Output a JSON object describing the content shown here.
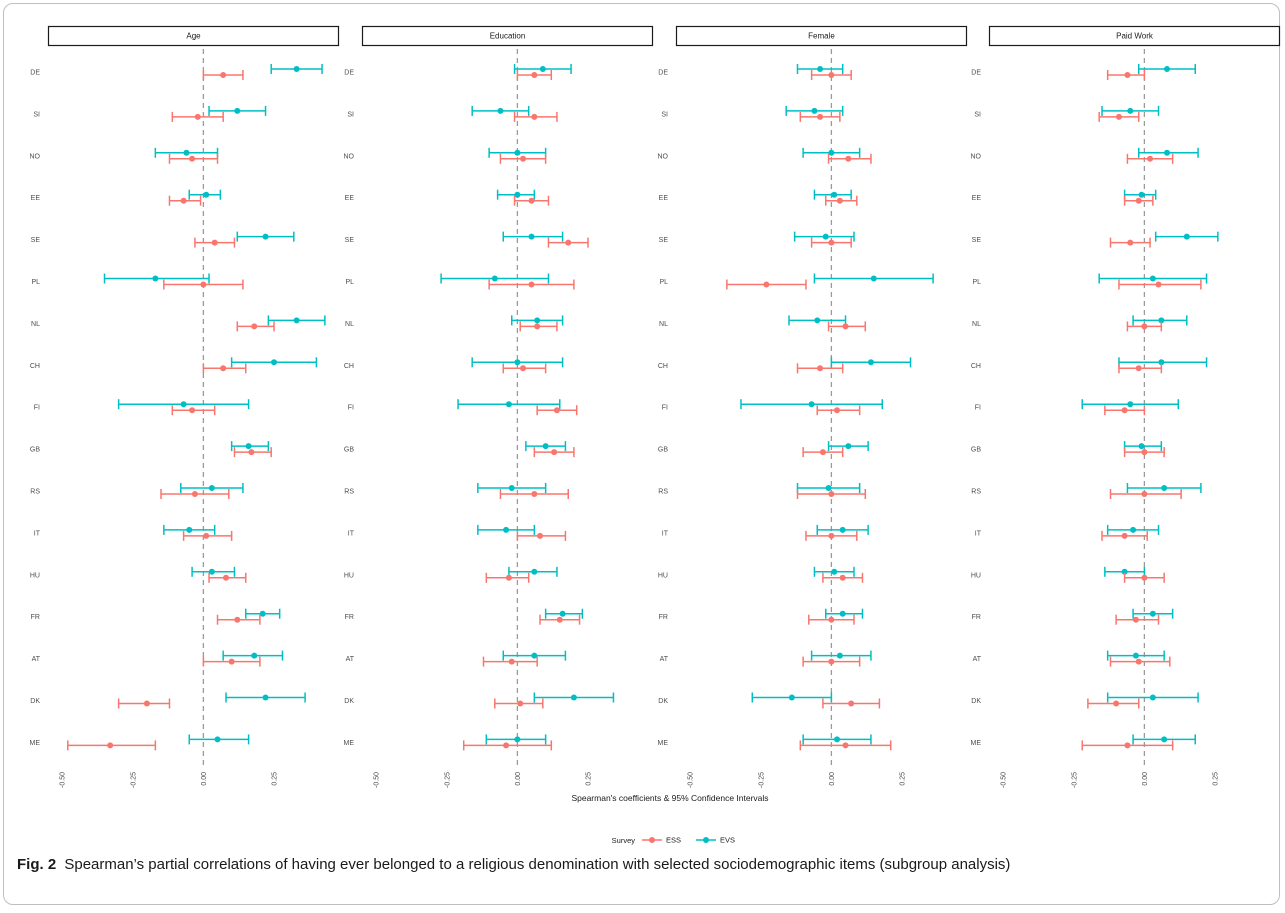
{
  "caption": {
    "label": "Fig. 2",
    "text": "Spearman’s partial correlations of having ever belonged to a religious denomination with selected sociodemographic items (subgroup analysis)"
  },
  "legend": {
    "title": "Survey",
    "entries": [
      {
        "label": "ESS",
        "color": "#F8766D"
      },
      {
        "label": "EVS",
        "color": "#00BFC4"
      }
    ]
  },
  "chart_data": {
    "type": "scatter",
    "subtype": "forest-plot-with-error-bars",
    "facet_layout": "1 row x 4 columns",
    "x_axis_title": "Spearman's coefficients & 95% Confidence Intervals",
    "xlim": [
      -0.55,
      0.48
    ],
    "x_ticks": [
      -0.5,
      -0.25,
      0.0,
      0.25
    ],
    "x_tick_labels": [
      "-0.50",
      "-0.25",
      "0.00",
      "0.25"
    ],
    "reference_line": 0,
    "grid": false,
    "legend_position": "bottom",
    "countries": [
      "DE",
      "SI",
      "NO",
      "EE",
      "SE",
      "PL",
      "NL",
      "CH",
      "FI",
      "GB",
      "RS",
      "IT",
      "HU",
      "FR",
      "AT",
      "DK",
      "ME"
    ],
    "series_colors": {
      "ESS": "#F8766D",
      "EVS": "#00BFC4"
    },
    "panels": [
      {
        "title": "Age",
        "ESS": [
          [
            0.07,
            0.0,
            0.14
          ],
          [
            -0.02,
            -0.11,
            0.07
          ],
          [
            -0.04,
            -0.12,
            0.05
          ],
          [
            -0.07,
            -0.12,
            -0.01
          ],
          [
            0.04,
            -0.03,
            0.11
          ],
          [
            0.0,
            -0.14,
            0.14
          ],
          [
            0.18,
            0.12,
            0.25
          ],
          [
            0.07,
            0.0,
            0.15
          ],
          [
            -0.04,
            -0.11,
            0.04
          ],
          [
            0.17,
            0.11,
            0.24
          ],
          [
            -0.03,
            -0.15,
            0.09
          ],
          [
            0.01,
            -0.07,
            0.1
          ],
          [
            0.08,
            0.02,
            0.15
          ],
          [
            0.12,
            0.05,
            0.2
          ],
          [
            0.1,
            0.0,
            0.2
          ],
          [
            -0.2,
            -0.3,
            -0.12
          ],
          [
            -0.33,
            -0.48,
            -0.17
          ]
        ],
        "EVS": [
          [
            0.33,
            0.24,
            0.42
          ],
          [
            0.12,
            0.02,
            0.22
          ],
          [
            -0.06,
            -0.17,
            0.05
          ],
          [
            0.01,
            -0.05,
            0.06
          ],
          [
            0.22,
            0.12,
            0.32
          ],
          [
            -0.17,
            -0.35,
            0.02
          ],
          [
            0.33,
            0.23,
            0.43
          ],
          [
            0.25,
            0.1,
            0.4
          ],
          [
            -0.07,
            -0.3,
            0.16
          ],
          [
            0.16,
            0.1,
            0.23
          ],
          [
            0.03,
            -0.08,
            0.14
          ],
          [
            -0.05,
            -0.14,
            0.04
          ],
          [
            0.03,
            -0.04,
            0.11
          ],
          [
            0.21,
            0.15,
            0.27
          ],
          [
            0.18,
            0.07,
            0.28
          ],
          [
            0.22,
            0.08,
            0.36
          ],
          [
            0.05,
            -0.05,
            0.16
          ]
        ]
      },
      {
        "title": "Education",
        "ESS": [
          [
            0.06,
            0.0,
            0.12
          ],
          [
            0.06,
            -0.01,
            0.14
          ],
          [
            0.02,
            -0.06,
            0.1
          ],
          [
            0.05,
            -0.01,
            0.11
          ],
          [
            0.18,
            0.11,
            0.25
          ],
          [
            0.05,
            -0.1,
            0.2
          ],
          [
            0.07,
            0.01,
            0.14
          ],
          [
            0.02,
            -0.05,
            0.1
          ],
          [
            0.14,
            0.07,
            0.21
          ],
          [
            0.13,
            0.06,
            0.2
          ],
          [
            0.06,
            -0.06,
            0.18
          ],
          [
            0.08,
            0.0,
            0.17
          ],
          [
            -0.03,
            -0.11,
            0.04
          ],
          [
            0.15,
            0.08,
            0.22
          ],
          [
            -0.02,
            -0.12,
            0.07
          ],
          [
            0.01,
            -0.08,
            0.09
          ],
          [
            -0.04,
            -0.19,
            0.12
          ]
        ],
        "EVS": [
          [
            0.09,
            -0.01,
            0.19
          ],
          [
            -0.06,
            -0.16,
            0.04
          ],
          [
            0.0,
            -0.1,
            0.1
          ],
          [
            0.0,
            -0.07,
            0.06
          ],
          [
            0.05,
            -0.05,
            0.16
          ],
          [
            -0.08,
            -0.27,
            0.11
          ],
          [
            0.07,
            -0.02,
            0.16
          ],
          [
            0.0,
            -0.16,
            0.16
          ],
          [
            -0.03,
            -0.21,
            0.15
          ],
          [
            0.1,
            0.03,
            0.17
          ],
          [
            -0.02,
            -0.14,
            0.1
          ],
          [
            -0.04,
            -0.14,
            0.06
          ],
          [
            0.06,
            -0.03,
            0.14
          ],
          [
            0.16,
            0.1,
            0.23
          ],
          [
            0.06,
            -0.05,
            0.17
          ],
          [
            0.2,
            0.06,
            0.34
          ],
          [
            0.0,
            -0.11,
            0.1
          ]
        ]
      },
      {
        "title": "Female",
        "ESS": [
          [
            0.0,
            -0.07,
            0.07
          ],
          [
            -0.04,
            -0.11,
            0.03
          ],
          [
            0.06,
            -0.01,
            0.14
          ],
          [
            0.03,
            -0.02,
            0.09
          ],
          [
            0.0,
            -0.07,
            0.07
          ],
          [
            -0.23,
            -0.37,
            -0.09
          ],
          [
            0.05,
            -0.01,
            0.12
          ],
          [
            -0.04,
            -0.12,
            0.04
          ],
          [
            0.02,
            -0.05,
            0.1
          ],
          [
            -0.03,
            -0.1,
            0.04
          ],
          [
            0.0,
            -0.12,
            0.12
          ],
          [
            0.0,
            -0.09,
            0.09
          ],
          [
            0.04,
            -0.03,
            0.11
          ],
          [
            0.0,
            -0.08,
            0.08
          ],
          [
            0.0,
            -0.1,
            0.1
          ],
          [
            0.07,
            -0.03,
            0.17
          ],
          [
            0.05,
            -0.11,
            0.21
          ]
        ],
        "EVS": [
          [
            -0.04,
            -0.12,
            0.04
          ],
          [
            -0.06,
            -0.16,
            0.04
          ],
          [
            0.0,
            -0.1,
            0.1
          ],
          [
            0.01,
            -0.06,
            0.07
          ],
          [
            -0.02,
            -0.13,
            0.08
          ],
          [
            0.15,
            -0.06,
            0.36
          ],
          [
            -0.05,
            -0.15,
            0.05
          ],
          [
            0.14,
            0.0,
            0.28
          ],
          [
            -0.07,
            -0.32,
            0.18
          ],
          [
            0.06,
            -0.01,
            0.13
          ],
          [
            -0.01,
            -0.12,
            0.1
          ],
          [
            0.04,
            -0.05,
            0.13
          ],
          [
            0.01,
            -0.06,
            0.08
          ],
          [
            0.04,
            -0.02,
            0.11
          ],
          [
            0.03,
            -0.07,
            0.14
          ],
          [
            -0.14,
            -0.28,
            0.0
          ],
          [
            0.02,
            -0.1,
            0.14
          ]
        ]
      },
      {
        "title": "Paid Work",
        "ESS": [
          [
            -0.06,
            -0.13,
            0.0
          ],
          [
            -0.09,
            -0.16,
            -0.02
          ],
          [
            0.02,
            -0.06,
            0.1
          ],
          [
            -0.02,
            -0.07,
            0.03
          ],
          [
            -0.05,
            -0.12,
            0.02
          ],
          [
            0.05,
            -0.09,
            0.2
          ],
          [
            0.0,
            -0.06,
            0.06
          ],
          [
            -0.02,
            -0.09,
            0.06
          ],
          [
            -0.07,
            -0.14,
            0.0
          ],
          [
            0.0,
            -0.07,
            0.07
          ],
          [
            0.0,
            -0.12,
            0.13
          ],
          [
            -0.07,
            -0.15,
            0.01
          ],
          [
            0.0,
            -0.07,
            0.07
          ],
          [
            -0.03,
            -0.1,
            0.05
          ],
          [
            -0.02,
            -0.12,
            0.09
          ],
          [
            -0.1,
            -0.2,
            -0.02
          ],
          [
            -0.06,
            -0.22,
            0.1
          ]
        ],
        "EVS": [
          [
            0.08,
            -0.02,
            0.18
          ],
          [
            -0.05,
            -0.15,
            0.05
          ],
          [
            0.08,
            -0.02,
            0.19
          ],
          [
            -0.01,
            -0.07,
            0.04
          ],
          [
            0.15,
            0.04,
            0.26
          ],
          [
            0.03,
            -0.16,
            0.22
          ],
          [
            0.06,
            -0.04,
            0.15
          ],
          [
            0.06,
            -0.09,
            0.22
          ],
          [
            -0.05,
            -0.22,
            0.12
          ],
          [
            -0.01,
            -0.07,
            0.06
          ],
          [
            0.07,
            -0.06,
            0.2
          ],
          [
            -0.04,
            -0.13,
            0.05
          ],
          [
            -0.07,
            -0.14,
            0.0
          ],
          [
            0.03,
            -0.04,
            0.1
          ],
          [
            -0.03,
            -0.13,
            0.07
          ],
          [
            0.03,
            -0.13,
            0.19
          ],
          [
            0.07,
            -0.04,
            0.18
          ]
        ]
      }
    ]
  }
}
